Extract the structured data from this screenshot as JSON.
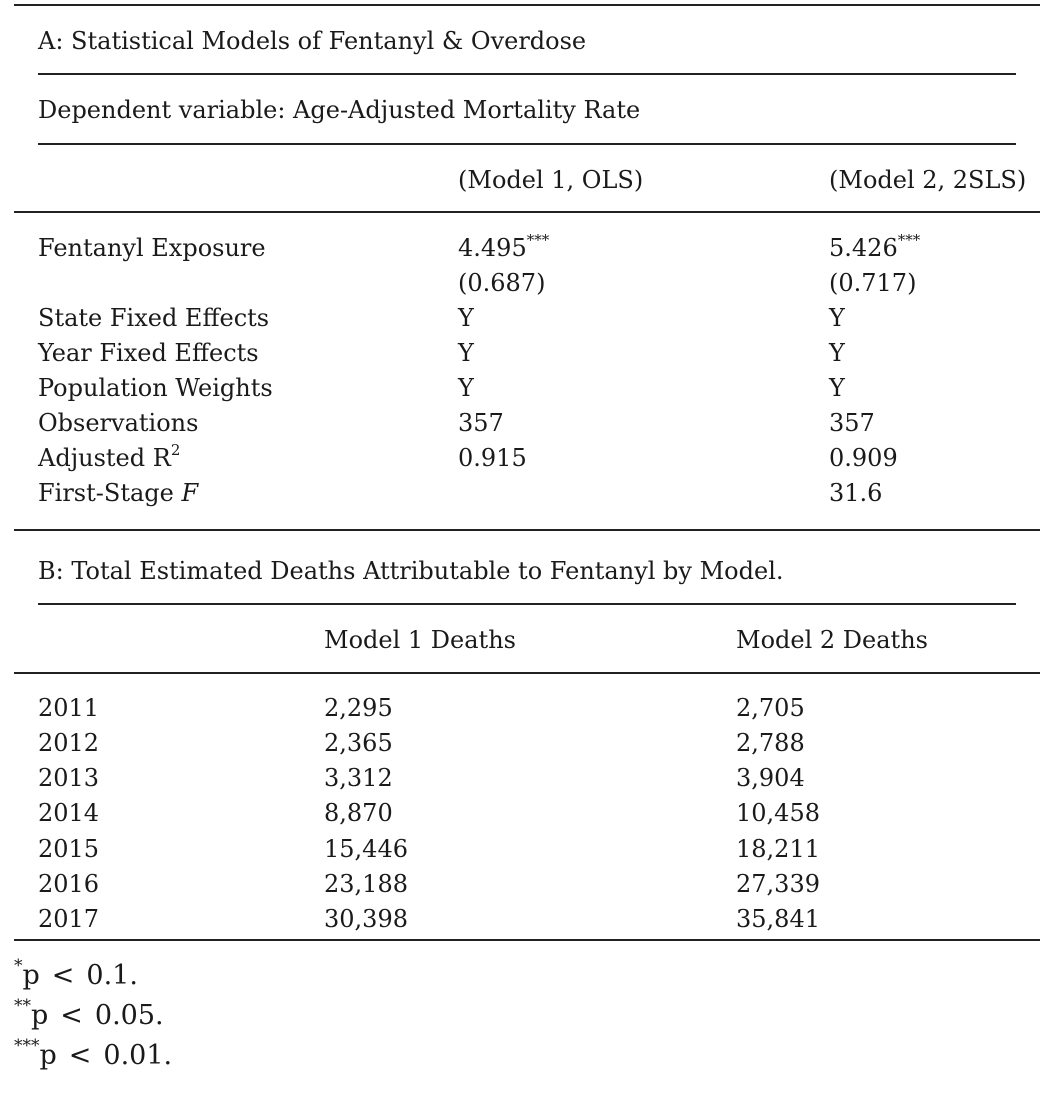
{
  "panel_a": {
    "title": "A: Statistical Models of Fentanyl & Overdose",
    "dependent_variable": "Dependent variable: Age-Adjusted Mortality Rate",
    "columns": [
      "(Model 1, OLS)",
      "(Model 2, 2SLS)"
    ],
    "rows": {
      "fentanyl": {
        "label": "Fentanyl Exposure",
        "m1": "4.495",
        "m1_stars": "***",
        "m1_se": "(0.687)",
        "m2": "5.426",
        "m2_stars": "***",
        "m2_se": "(0.717)"
      },
      "state_fe": {
        "label": "State Fixed Effects",
        "m1": "Y",
        "m2": "Y"
      },
      "year_fe": {
        "label": "Year Fixed Effects",
        "m1": "Y",
        "m2": "Y"
      },
      "pop_weights": {
        "label": "Population Weights",
        "m1": "Y",
        "m2": "Y"
      },
      "observations": {
        "label": "Observations",
        "m1": "357",
        "m2": "357"
      },
      "adj_r2": {
        "label": "Adjusted R",
        "label_sup": "2",
        "m1": "0.915",
        "m2": "0.909"
      },
      "first_stage": {
        "label": "First-Stage ",
        "label_italic": "F",
        "m1": "",
        "m2": "31.6"
      }
    }
  },
  "panel_b": {
    "title": "B: Total Estimated Deaths Attributable to Fentanyl by Model.",
    "columns": [
      "Model 1 Deaths",
      "Model 2 Deaths"
    ],
    "rows": [
      {
        "year": "2011",
        "m1": "2,295",
        "m2": "2,705"
      },
      {
        "year": "2012",
        "m1": "2,365",
        "m2": "2,788"
      },
      {
        "year": "2013",
        "m1": "3,312",
        "m2": "3,904"
      },
      {
        "year": "2014",
        "m1": "8,870",
        "m2": "10,458"
      },
      {
        "year": "2015",
        "m1": "15,446",
        "m2": "18,211"
      },
      {
        "year": "2016",
        "m1": "23,188",
        "m2": "27,339"
      },
      {
        "year": "2017",
        "m1": "30,398",
        "m2": "35,841"
      }
    ]
  },
  "footnotes": [
    {
      "stars": "*",
      "p": "p",
      "op": "<",
      "value": "0.1."
    },
    {
      "stars": "**",
      "p": "p",
      "op": "<",
      "value": "0.05."
    },
    {
      "stars": "***",
      "p": "p",
      "op": "<",
      "value": "0.01."
    }
  ]
}
